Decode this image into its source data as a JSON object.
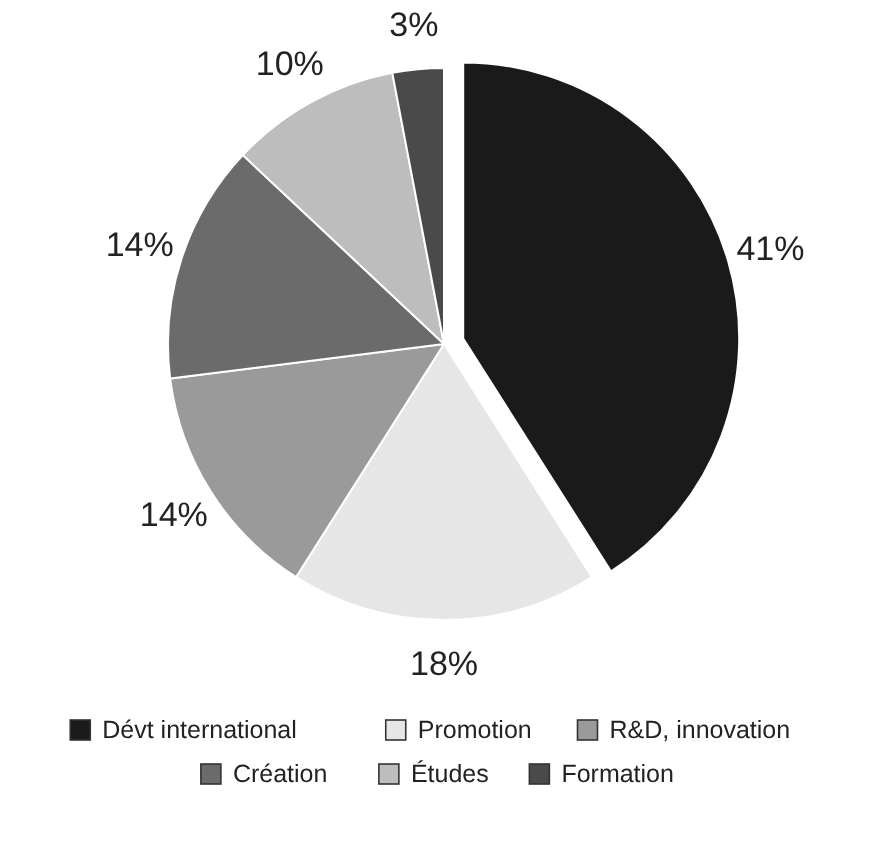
{
  "chart_data": {
    "type": "pie",
    "categories": [
      "Dévt international",
      "Promotion",
      "R&D, innovation",
      "Création",
      "Études",
      "Formation"
    ],
    "values": [
      41,
      18,
      14,
      14,
      10,
      3
    ],
    "colors": [
      "#1a1a1a",
      "#e6e6e6",
      "#9a9a9a",
      "#6b6b6b",
      "#bdbdbd",
      "#4a4a4a"
    ],
    "value_labels": [
      "41%",
      "18%",
      "14%",
      "14%",
      "10%",
      "3%"
    ],
    "legend": "bottom"
  }
}
